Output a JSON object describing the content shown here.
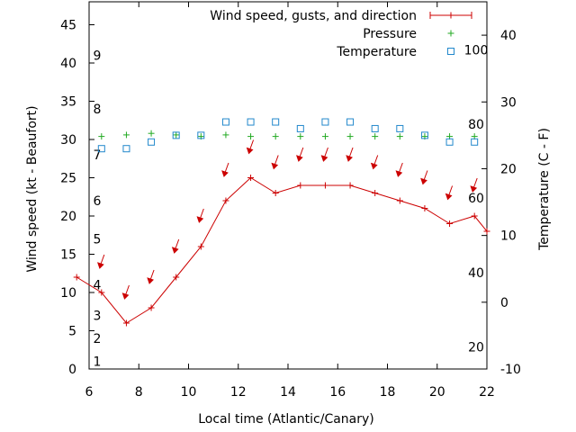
{
  "chart_data": {
    "type": "line",
    "xlabel": "Local time (Atlantic/Canary)",
    "ylabel_left": "Wind speed (kt - Beaufort)",
    "ylabel_right": "Temperature (C - F)",
    "x_ticks": [
      "6",
      "8",
      "10",
      "12",
      "14",
      "16",
      "18",
      "20",
      "22"
    ],
    "y_ticks_left": [
      "0",
      "5",
      "10",
      "15",
      "20",
      "25",
      "30",
      "35",
      "40",
      "45"
    ],
    "y_ticks_right": [
      "-10",
      "0",
      "10",
      "20",
      "30",
      "40"
    ],
    "beaufort_labels": [
      {
        "label": "1",
        "kt": 1
      },
      {
        "label": "2",
        "kt": 4
      },
      {
        "label": "3",
        "kt": 7
      },
      {
        "label": "4",
        "kt": 11
      },
      {
        "label": "5",
        "kt": 17
      },
      {
        "label": "6",
        "kt": 22
      },
      {
        "label": "7",
        "kt": 28
      },
      {
        "label": "8",
        "kt": 34
      },
      {
        "label": "9",
        "kt": 41
      }
    ],
    "fahrenheit_labels": [
      {
        "label": "20",
        "c": -6.7
      },
      {
        "label": "40",
        "c": 4.4
      },
      {
        "label": "60",
        "c": 15.6
      },
      {
        "label": "80",
        "c": 26.7
      },
      {
        "label": "100",
        "c": 37.8
      }
    ],
    "xlim": [
      6,
      22
    ],
    "ylim_left": [
      0,
      48
    ],
    "ylim_right": [
      -10,
      45
    ],
    "legend_position": "top-right",
    "colors": {
      "wind": "#cc0000",
      "pressure": "#22aa22",
      "temperature": "#2288cc"
    },
    "series": [
      {
        "name": "Wind speed, gusts, and direction",
        "axis": "left",
        "x": [
          5.5,
          6.5,
          7.5,
          8.5,
          9.5,
          10.5,
          11.5,
          12.5,
          13.5,
          14.5,
          15.5,
          16.5,
          17.5,
          18.5,
          19.5,
          20.5,
          21.5,
          22.0
        ],
        "y": [
          12,
          10,
          6,
          8,
          12,
          16,
          22,
          25,
          23,
          24,
          24,
          24,
          23,
          22,
          21,
          19,
          20,
          18
        ]
      },
      {
        "name": "Pressure",
        "axis": "left",
        "x": [
          6.5,
          7.5,
          8.5,
          9.5,
          10.5,
          11.5,
          12.5,
          13.5,
          14.5,
          15.5,
          16.5,
          17.5,
          18.5,
          19.5,
          20.5,
          21.5
        ],
        "y": [
          30.4,
          30.6,
          30.8,
          30.6,
          30.4,
          30.6,
          30.4,
          30.4,
          30.4,
          30.4,
          30.4,
          30.4,
          30.4,
          30.4,
          30.4,
          30.4
        ]
      },
      {
        "name": "Temperature",
        "axis": "right",
        "x": [
          6.5,
          7.5,
          8.5,
          9.5,
          10.5,
          11.5,
          12.5,
          13.5,
          14.5,
          15.5,
          16.5,
          17.5,
          18.5,
          19.5,
          20.5,
          21.5
        ],
        "y": [
          23,
          23,
          24,
          25,
          25,
          27,
          27,
          27,
          26,
          27,
          27,
          26,
          26,
          25,
          24,
          24
        ]
      }
    ],
    "wind_arrows": {
      "x": [
        6.5,
        7.5,
        8.5,
        9.5,
        10.5,
        11.5,
        12.5,
        13.5,
        14.5,
        15.5,
        16.5,
        17.5,
        18.5,
        19.5,
        20.5,
        21.5
      ],
      "y": [
        14,
        10,
        12,
        16,
        20,
        26,
        29,
        27,
        28,
        28,
        28,
        27,
        26,
        25,
        23,
        24
      ]
    }
  }
}
